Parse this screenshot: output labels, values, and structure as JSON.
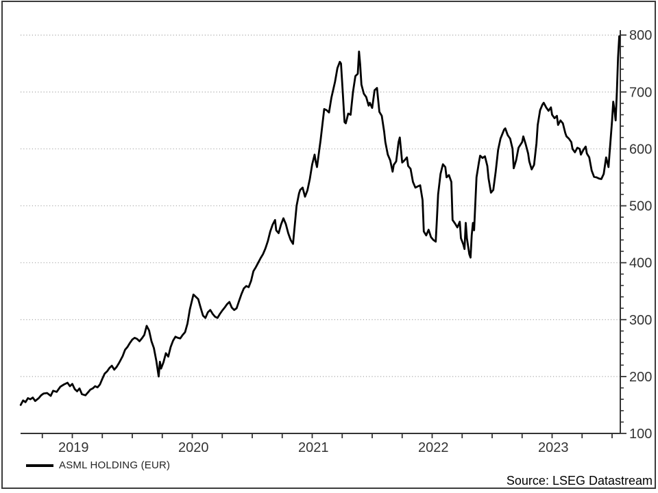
{
  "window": {
    "background_color": "#ffffff",
    "border_color": "#3a3a3a"
  },
  "legend": {
    "label": "ASML HOLDING (EUR)",
    "line_color": "#000000"
  },
  "source": {
    "text": "Source: LSEG Datastream"
  },
  "chart_data": {
    "type": "line",
    "title": "",
    "xlabel": "",
    "ylabel": "",
    "ylim": [
      100,
      808
    ],
    "xlim_years": [
      2019.07,
      2024.07
    ],
    "grid": "dotted horizontal",
    "legend_position": "bottom-left",
    "axis_color": "#333333",
    "gridline_color": "#a8a8a8",
    "y_axis": {
      "side": "right",
      "major_ticks": [
        100,
        200,
        300,
        400,
        500,
        600,
        700,
        800
      ],
      "minor_tick_step": 20,
      "gridline_values": [
        200,
        300,
        400,
        500,
        600,
        700,
        800
      ]
    },
    "x_axis": {
      "minor_tick_step_years": 0.25,
      "first_tick": 2019.25,
      "last_tick": 2024.0,
      "year_labels": [
        {
          "label": "2019",
          "t": 2019.51
        },
        {
          "label": "2020",
          "t": 2020.51
        },
        {
          "label": "2021",
          "t": 2021.51
        },
        {
          "label": "2022",
          "t": 2022.51
        },
        {
          "label": "2023",
          "t": 2023.51
        }
      ]
    },
    "series": [
      {
        "name": "ASML HOLDING (EUR)",
        "color": "#000000",
        "points": [
          [
            2019.07,
            150
          ],
          [
            2019.09,
            158
          ],
          [
            2019.11,
            155
          ],
          [
            2019.13,
            162
          ],
          [
            2019.15,
            160
          ],
          [
            2019.17,
            163
          ],
          [
            2019.19,
            157
          ],
          [
            2019.22,
            162
          ],
          [
            2019.24,
            167
          ],
          [
            2019.26,
            170
          ],
          [
            2019.29,
            171
          ],
          [
            2019.32,
            166
          ],
          [
            2019.34,
            175
          ],
          [
            2019.37,
            173
          ],
          [
            2019.4,
            182
          ],
          [
            2019.43,
            186
          ],
          [
            2019.46,
            189
          ],
          [
            2019.48,
            183
          ],
          [
            2019.5,
            187
          ],
          [
            2019.52,
            178
          ],
          [
            2019.54,
            174
          ],
          [
            2019.56,
            179
          ],
          [
            2019.58,
            169
          ],
          [
            2019.61,
            167
          ],
          [
            2019.63,
            172
          ],
          [
            2019.65,
            177
          ],
          [
            2019.67,
            179
          ],
          [
            2019.69,
            183
          ],
          [
            2019.71,
            181
          ],
          [
            2019.73,
            186
          ],
          [
            2019.75,
            196
          ],
          [
            2019.77,
            205
          ],
          [
            2019.79,
            209
          ],
          [
            2019.81,
            215
          ],
          [
            2019.83,
            219
          ],
          [
            2019.85,
            212
          ],
          [
            2019.87,
            217
          ],
          [
            2019.89,
            224
          ],
          [
            2019.92,
            236
          ],
          [
            2019.94,
            247
          ],
          [
            2019.96,
            252
          ],
          [
            2019.98,
            259
          ],
          [
            2020.0,
            265
          ],
          [
            2020.02,
            268
          ],
          [
            2020.04,
            266
          ],
          [
            2020.06,
            262
          ],
          [
            2020.08,
            267
          ],
          [
            2020.1,
            273
          ],
          [
            2020.12,
            289
          ],
          [
            2020.14,
            281
          ],
          [
            2020.16,
            262
          ],
          [
            2020.18,
            250
          ],
          [
            2020.2,
            228
          ],
          [
            2020.22,
            200
          ],
          [
            2020.23,
            226
          ],
          [
            2020.24,
            214
          ],
          [
            2020.26,
            225
          ],
          [
            2020.28,
            241
          ],
          [
            2020.3,
            235
          ],
          [
            2020.32,
            252
          ],
          [
            2020.34,
            263
          ],
          [
            2020.36,
            270
          ],
          [
            2020.38,
            268
          ],
          [
            2020.4,
            267
          ],
          [
            2020.42,
            273
          ],
          [
            2020.44,
            278
          ],
          [
            2020.46,
            293
          ],
          [
            2020.48,
            318
          ],
          [
            2020.51,
            344
          ],
          [
            2020.53,
            340
          ],
          [
            2020.55,
            336
          ],
          [
            2020.57,
            321
          ],
          [
            2020.59,
            307
          ],
          [
            2020.61,
            303
          ],
          [
            2020.63,
            313
          ],
          [
            2020.65,
            317
          ],
          [
            2020.67,
            310
          ],
          [
            2020.69,
            305
          ],
          [
            2020.71,
            303
          ],
          [
            2020.73,
            310
          ],
          [
            2020.75,
            316
          ],
          [
            2020.77,
            321
          ],
          [
            2020.79,
            327
          ],
          [
            2020.81,
            331
          ],
          [
            2020.83,
            321
          ],
          [
            2020.85,
            317
          ],
          [
            2020.87,
            320
          ],
          [
            2020.89,
            333
          ],
          [
            2020.91,
            345
          ],
          [
            2020.93,
            355
          ],
          [
            2020.95,
            359
          ],
          [
            2020.97,
            357
          ],
          [
            2020.99,
            368
          ],
          [
            2021.01,
            385
          ],
          [
            2021.03,
            392
          ],
          [
            2021.05,
            400
          ],
          [
            2021.07,
            408
          ],
          [
            2021.09,
            415
          ],
          [
            2021.11,
            425
          ],
          [
            2021.13,
            438
          ],
          [
            2021.15,
            455
          ],
          [
            2021.17,
            467
          ],
          [
            2021.19,
            475
          ],
          [
            2021.2,
            457
          ],
          [
            2021.22,
            452
          ],
          [
            2021.24,
            467
          ],
          [
            2021.26,
            478
          ],
          [
            2021.28,
            468
          ],
          [
            2021.3,
            452
          ],
          [
            2021.32,
            440
          ],
          [
            2021.34,
            433
          ],
          [
            2021.35,
            455
          ],
          [
            2021.37,
            500
          ],
          [
            2021.39,
            522
          ],
          [
            2021.4,
            528
          ],
          [
            2021.42,
            532
          ],
          [
            2021.44,
            516
          ],
          [
            2021.46,
            527
          ],
          [
            2021.48,
            547
          ],
          [
            2021.5,
            573
          ],
          [
            2021.52,
            590
          ],
          [
            2021.53,
            577
          ],
          [
            2021.54,
            568
          ],
          [
            2021.56,
            600
          ],
          [
            2021.57,
            615
          ],
          [
            2021.6,
            670
          ],
          [
            2021.62,
            668
          ],
          [
            2021.64,
            664
          ],
          [
            2021.66,
            690
          ],
          [
            2021.69,
            718
          ],
          [
            2021.71,
            742
          ],
          [
            2021.73,
            753
          ],
          [
            2021.74,
            750
          ],
          [
            2021.75,
            715
          ],
          [
            2021.77,
            647
          ],
          [
            2021.78,
            645
          ],
          [
            2021.8,
            662
          ],
          [
            2021.82,
            660
          ],
          [
            2021.84,
            700
          ],
          [
            2021.86,
            728
          ],
          [
            2021.88,
            732
          ],
          [
            2021.89,
            771
          ],
          [
            2021.9,
            748
          ],
          [
            2021.91,
            713
          ],
          [
            2021.93,
            697
          ],
          [
            2021.95,
            691
          ],
          [
            2021.97,
            676
          ],
          [
            2021.98,
            681
          ],
          [
            2022.0,
            672
          ],
          [
            2022.02,
            703
          ],
          [
            2022.04,
            707
          ],
          [
            2022.06,
            665
          ],
          [
            2022.08,
            658
          ],
          [
            2022.1,
            630
          ],
          [
            2022.11,
            612
          ],
          [
            2022.13,
            590
          ],
          [
            2022.15,
            580
          ],
          [
            2022.17,
            560
          ],
          [
            2022.18,
            572
          ],
          [
            2022.2,
            578
          ],
          [
            2022.22,
            612
          ],
          [
            2022.23,
            620
          ],
          [
            2022.25,
            576
          ],
          [
            2022.27,
            580
          ],
          [
            2022.29,
            585
          ],
          [
            2022.3,
            570
          ],
          [
            2022.32,
            565
          ],
          [
            2022.34,
            542
          ],
          [
            2022.36,
            532
          ],
          [
            2022.38,
            534
          ],
          [
            2022.4,
            536
          ],
          [
            2022.42,
            510
          ],
          [
            2022.43,
            455
          ],
          [
            2022.45,
            448
          ],
          [
            2022.47,
            458
          ],
          [
            2022.49,
            445
          ],
          [
            2022.51,
            440
          ],
          [
            2022.53,
            437
          ],
          [
            2022.54,
            478
          ],
          [
            2022.55,
            520
          ],
          [
            2022.57,
            556
          ],
          [
            2022.59,
            573
          ],
          [
            2022.61,
            568
          ],
          [
            2022.62,
            550
          ],
          [
            2022.64,
            554
          ],
          [
            2022.66,
            542
          ],
          [
            2022.67,
            475
          ],
          [
            2022.69,
            469
          ],
          [
            2022.71,
            462
          ],
          [
            2022.73,
            472
          ],
          [
            2022.74,
            443
          ],
          [
            2022.76,
            432
          ],
          [
            2022.77,
            424
          ],
          [
            2022.78,
            470
          ],
          [
            2022.79,
            443
          ],
          [
            2022.81,
            415
          ],
          [
            2022.82,
            409
          ],
          [
            2022.83,
            448
          ],
          [
            2022.84,
            470
          ],
          [
            2022.85,
            457
          ],
          [
            2022.87,
            550
          ],
          [
            2022.89,
            577
          ],
          [
            2022.9,
            588
          ],
          [
            2022.92,
            584
          ],
          [
            2022.94,
            587
          ],
          [
            2022.96,
            570
          ],
          [
            2022.97,
            548
          ],
          [
            2022.99,
            523
          ],
          [
            2023.01,
            528
          ],
          [
            2023.03,
            560
          ],
          [
            2023.05,
            598
          ],
          [
            2023.07,
            618
          ],
          [
            2023.1,
            634
          ],
          [
            2023.11,
            636
          ],
          [
            2023.13,
            624
          ],
          [
            2023.15,
            618
          ],
          [
            2023.17,
            600
          ],
          [
            2023.18,
            566
          ],
          [
            2023.2,
            580
          ],
          [
            2023.22,
            602
          ],
          [
            2023.25,
            612
          ],
          [
            2023.26,
            622
          ],
          [
            2023.28,
            608
          ],
          [
            2023.3,
            592
          ],
          [
            2023.31,
            578
          ],
          [
            2023.33,
            564
          ],
          [
            2023.35,
            572
          ],
          [
            2023.37,
            610
          ],
          [
            2023.38,
            642
          ],
          [
            2023.4,
            668
          ],
          [
            2023.42,
            678
          ],
          [
            2023.43,
            681
          ],
          [
            2023.45,
            673
          ],
          [
            2023.47,
            667
          ],
          [
            2023.49,
            673
          ],
          [
            2023.5,
            660
          ],
          [
            2023.52,
            654
          ],
          [
            2023.54,
            658
          ],
          [
            2023.55,
            642
          ],
          [
            2023.57,
            650
          ],
          [
            2023.59,
            645
          ],
          [
            2023.61,
            628
          ],
          [
            2023.62,
            622
          ],
          [
            2023.64,
            618
          ],
          [
            2023.66,
            612
          ],
          [
            2023.67,
            600
          ],
          [
            2023.69,
            594
          ],
          [
            2023.71,
            602
          ],
          [
            2023.73,
            600
          ],
          [
            2023.74,
            590
          ],
          [
            2023.76,
            598
          ],
          [
            2023.78,
            604
          ],
          [
            2023.79,
            592
          ],
          [
            2023.81,
            585
          ],
          [
            2023.83,
            562
          ],
          [
            2023.85,
            551
          ],
          [
            2023.87,
            550
          ],
          [
            2023.89,
            548
          ],
          [
            2023.91,
            547
          ],
          [
            2023.93,
            556
          ],
          [
            2023.95,
            585
          ],
          [
            2023.97,
            568
          ],
          [
            2023.98,
            595
          ],
          [
            2024.0,
            650
          ],
          [
            2024.01,
            683
          ],
          [
            2024.02,
            668
          ],
          [
            2024.03,
            650
          ],
          [
            2024.04,
            700
          ],
          [
            2024.05,
            760
          ],
          [
            2024.06,
            798
          ]
        ]
      }
    ]
  }
}
